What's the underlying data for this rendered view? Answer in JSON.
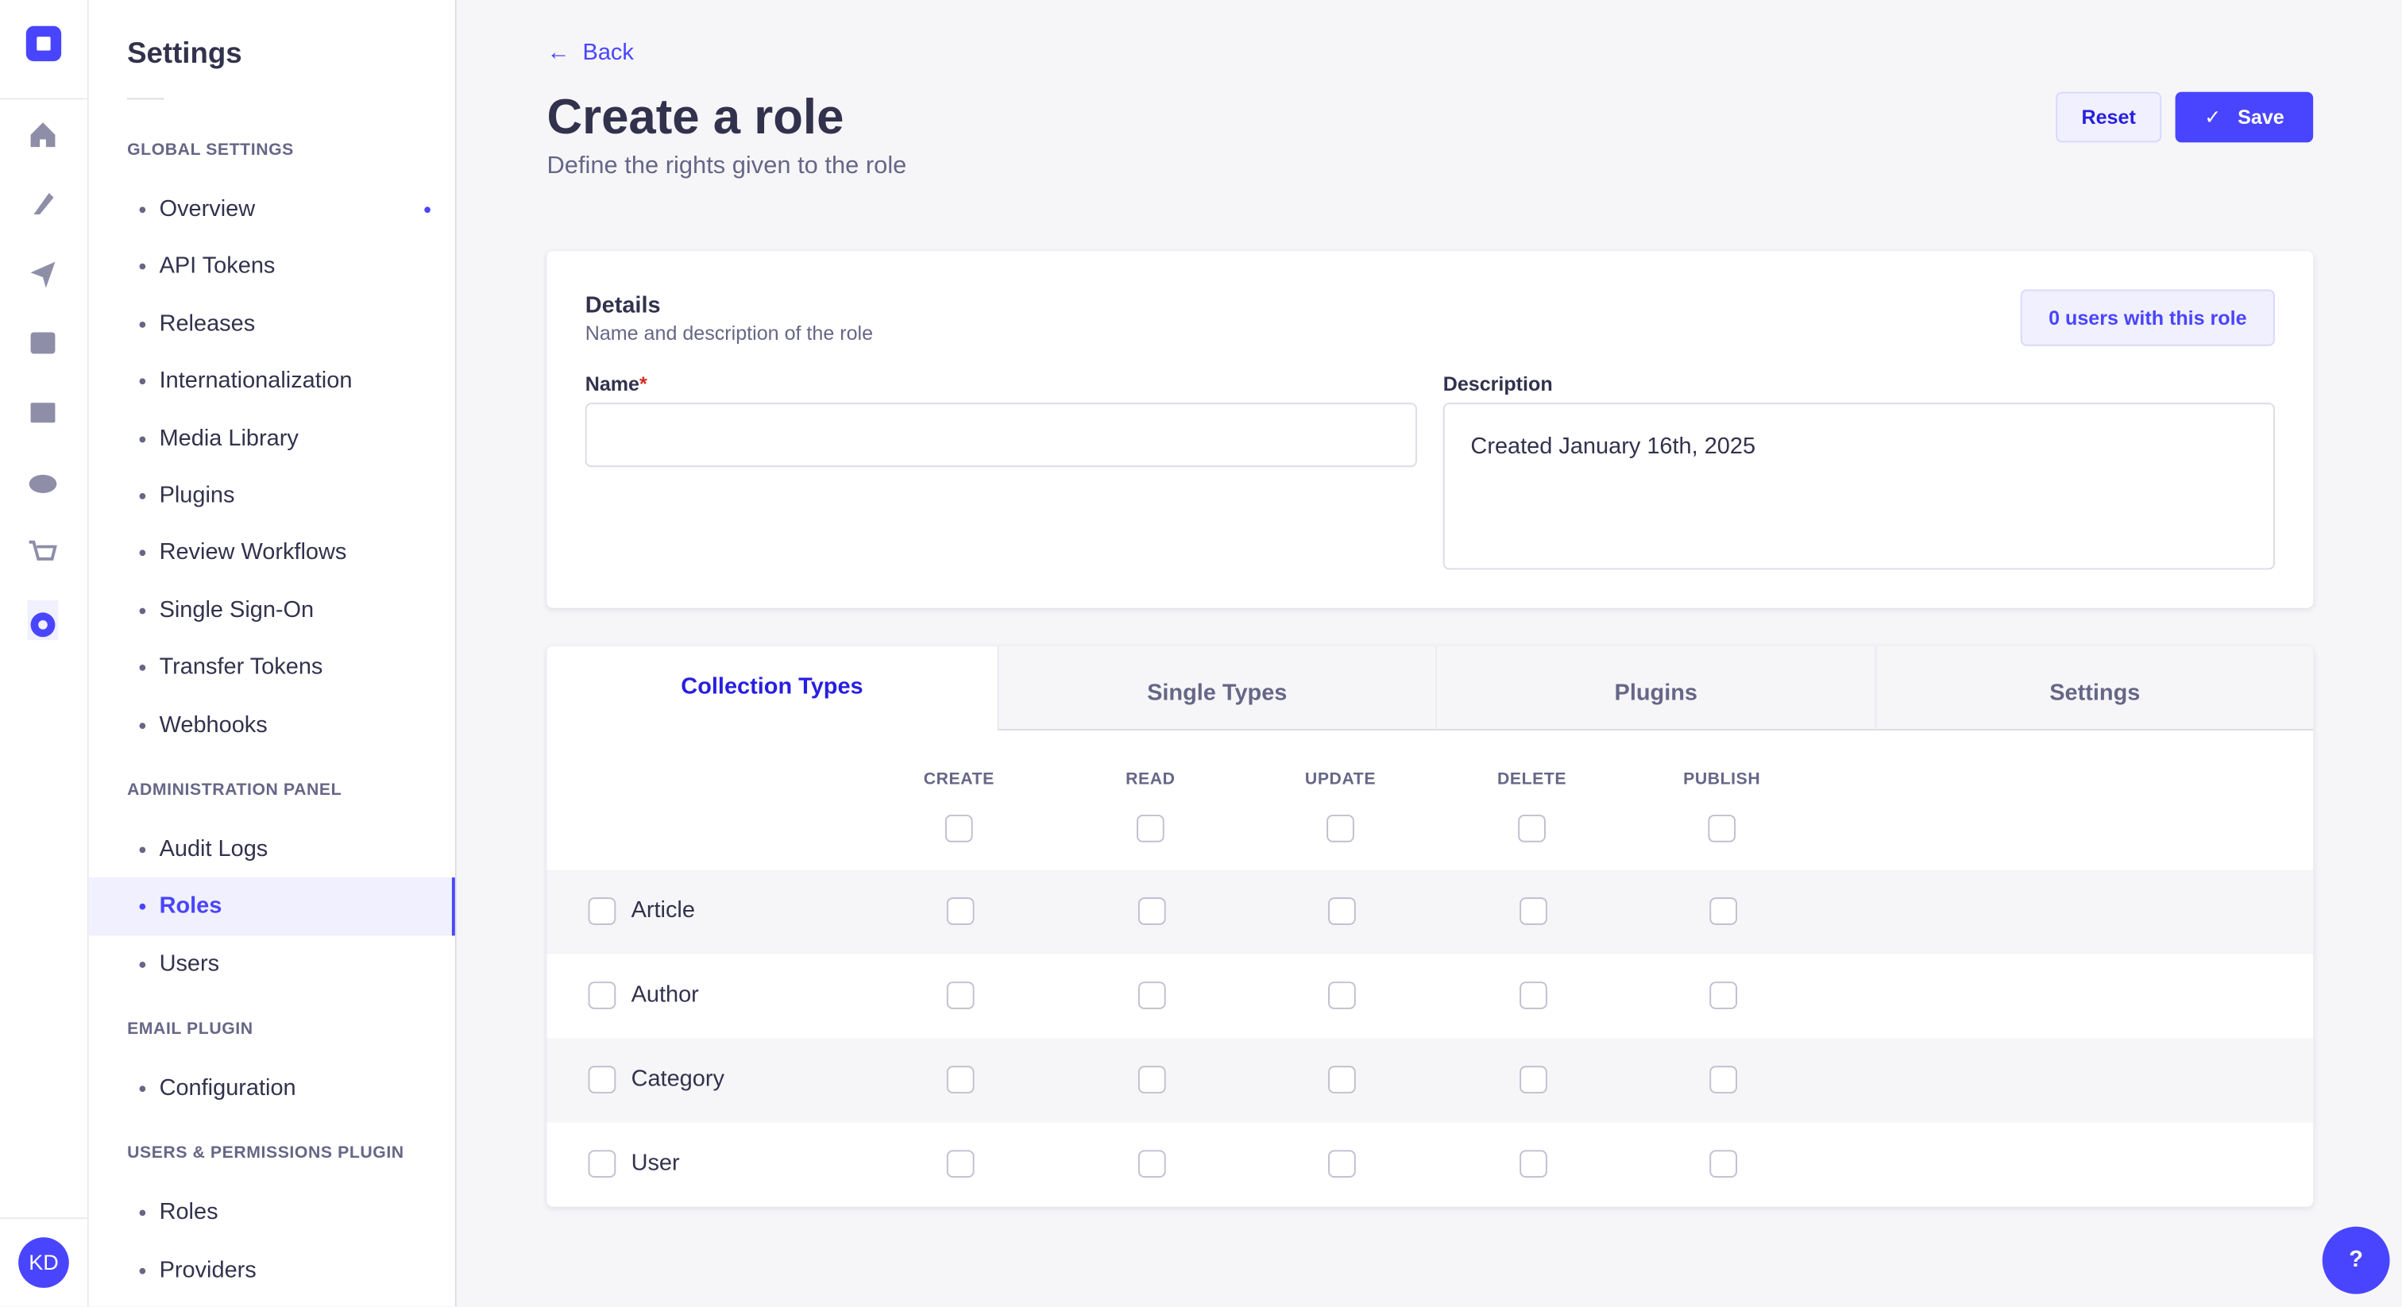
{
  "nav": {
    "avatar": "KD"
  },
  "sidebar": {
    "title": "Settings",
    "sections": [
      {
        "heading": "GLOBAL SETTINGS",
        "items": [
          "Overview",
          "API Tokens",
          "Releases",
          "Internationalization",
          "Media Library",
          "Plugins",
          "Review Workflows",
          "Single Sign-On",
          "Transfer Tokens",
          "Webhooks"
        ]
      },
      {
        "heading": "ADMINISTRATION PANEL",
        "items": [
          "Audit Logs",
          "Roles",
          "Users"
        ]
      },
      {
        "heading": "EMAIL PLUGIN",
        "items": [
          "Configuration"
        ]
      },
      {
        "heading": "USERS & PERMISSIONS PLUGIN",
        "items": [
          "Roles",
          "Providers"
        ]
      }
    ]
  },
  "header": {
    "back": "Back",
    "title": "Create a role",
    "subtitle": "Define the rights given to the role",
    "reset": "Reset",
    "save": "Save"
  },
  "details": {
    "title": "Details",
    "subtitle": "Name and description of the role",
    "users_badge": "0 users with this role",
    "name_label": "Name",
    "required": "*",
    "description_label": "Description",
    "description_value": "Created January 16th, 2025"
  },
  "tabs": [
    "Collection Types",
    "Single Types",
    "Plugins",
    "Settings"
  ],
  "permissions": {
    "columns": [
      "CREATE",
      "READ",
      "UPDATE",
      "DELETE",
      "PUBLISH"
    ],
    "rows": [
      "Article",
      "Author",
      "Category",
      "User"
    ]
  }
}
